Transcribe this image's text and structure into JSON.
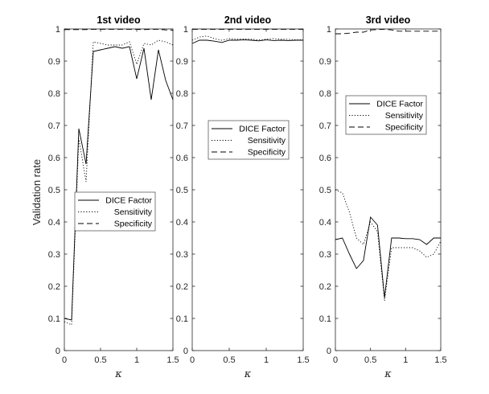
{
  "chart_data": {
    "type": "line",
    "ylabel": "Validation rate",
    "line_styles": {
      "DICE Factor": "solid",
      "Sensitivity": "dotted",
      "Specificity": "dashed"
    },
    "series_color": "#000000",
    "panels": [
      {
        "title": "1st video",
        "xlabel": "κ",
        "xlim": [
          0,
          1.5
        ],
        "ylim": [
          0,
          1
        ],
        "xticks": [
          "0",
          "0.5",
          "1",
          "1.5"
        ],
        "yticks": [
          "0",
          "0.1",
          "0.2",
          "0.3",
          "0.4",
          "0.5",
          "0.6",
          "0.7",
          "0.8",
          "0.9",
          "1"
        ],
        "legend_position": "center",
        "legend": [
          "DICE Factor",
          "Sensitivity",
          "Specificity"
        ],
        "series": [
          {
            "name": "DICE Factor",
            "x": [
              0,
              0.1,
              0.2,
              0.3,
              0.4,
              0.5,
              0.6,
              0.7,
              0.8,
              0.9,
              1.0,
              1.1,
              1.2,
              1.3,
              1.4,
              1.5
            ],
            "y": [
              0.1,
              0.095,
              0.69,
              0.58,
              0.93,
              0.935,
              0.94,
              0.945,
              0.94,
              0.945,
              0.845,
              0.94,
              0.78,
              0.935,
              0.84,
              0.78
            ]
          },
          {
            "name": "Sensitivity",
            "x": [
              0,
              0.1,
              0.2,
              0.3,
              0.4,
              0.5,
              0.6,
              0.7,
              0.8,
              0.9,
              1.0,
              1.1,
              1.2,
              1.3,
              1.4,
              1.5
            ],
            "y": [
              0.09,
              0.08,
              0.66,
              0.525,
              0.96,
              0.955,
              0.95,
              0.95,
              0.95,
              0.96,
              0.89,
              0.955,
              0.95,
              0.965,
              0.96,
              0.95
            ]
          },
          {
            "name": "Specificity",
            "x": [
              0,
              0.1,
              0.2,
              0.3,
              0.4,
              0.5,
              0.6,
              0.7,
              0.8,
              0.9,
              1.0,
              1.1,
              1.2,
              1.3,
              1.4,
              1.5
            ],
            "y": [
              0.998,
              0.998,
              0.998,
              0.998,
              0.999,
              0.999,
              0.999,
              0.999,
              0.999,
              0.999,
              0.999,
              0.998,
              0.999,
              0.999,
              0.997,
              0.996
            ]
          }
        ]
      },
      {
        "title": "2nd video",
        "xlabel": "κ",
        "xlim": [
          0,
          1.5
        ],
        "ylim": [
          0,
          1
        ],
        "xticks": [
          "0",
          "0.5",
          "1",
          "1.5"
        ],
        "yticks": [
          "0",
          "0.1",
          "0.2",
          "0.3",
          "0.4",
          "0.5",
          "0.6",
          "0.7",
          "0.8",
          "0.9",
          "1"
        ],
        "legend_position": "upper-middle",
        "legend": [
          "DICE Factor",
          "Sensitivity",
          "Specificity"
        ],
        "series": [
          {
            "name": "DICE Factor",
            "x": [
              0,
              0.1,
              0.2,
              0.3,
              0.4,
              0.5,
              0.6,
              0.7,
              0.8,
              0.9,
              1.0,
              1.1,
              1.2,
              1.3,
              1.4,
              1.5
            ],
            "y": [
              0.955,
              0.965,
              0.965,
              0.962,
              0.958,
              0.965,
              0.965,
              0.966,
              0.965,
              0.963,
              0.966,
              0.964,
              0.965,
              0.964,
              0.965,
              0.965
            ]
          },
          {
            "name": "Sensitivity",
            "x": [
              0,
              0.1,
              0.2,
              0.3,
              0.4,
              0.5,
              0.6,
              0.7,
              0.8,
              0.9,
              1.0,
              1.1,
              1.2,
              1.3,
              1.4,
              1.5
            ],
            "y": [
              0.965,
              0.975,
              0.978,
              0.97,
              0.965,
              0.97,
              0.968,
              0.969,
              0.968,
              0.966,
              0.968,
              0.97,
              0.968,
              0.968,
              0.966,
              0.966
            ]
          },
          {
            "name": "Specificity",
            "x": [
              0,
              0.1,
              0.2,
              0.3,
              0.4,
              0.5,
              0.6,
              0.7,
              0.8,
              0.9,
              1.0,
              1.1,
              1.2,
              1.3,
              1.4,
              1.5
            ],
            "y": [
              0.999,
              0.999,
              0.999,
              0.999,
              0.999,
              0.999,
              0.999,
              0.999,
              0.999,
              0.999,
              0.999,
              0.999,
              0.999,
              0.999,
              0.999,
              0.999
            ]
          }
        ]
      },
      {
        "title": "3rd video",
        "xlabel": "κ",
        "xlim": [
          0,
          1.5
        ],
        "ylim": [
          0,
          1
        ],
        "xticks": [
          "0",
          "0.5",
          "1",
          "1.5"
        ],
        "yticks": [
          "0",
          "0.1",
          "0.2",
          "0.3",
          "0.4",
          "0.5",
          "0.6",
          "0.7",
          "0.8",
          "0.9",
          "1"
        ],
        "legend_position": "upper-middle",
        "legend": [
          "DICE Factor",
          "Sensitivity",
          "Specificity"
        ],
        "series": [
          {
            "name": "DICE Factor",
            "x": [
              0,
              0.1,
              0.2,
              0.3,
              0.4,
              0.5,
              0.6,
              0.7,
              0.8,
              0.9,
              1.0,
              1.1,
              1.2,
              1.3,
              1.4,
              1.5
            ],
            "y": [
              0.345,
              0.35,
              0.3,
              0.255,
              0.28,
              0.415,
              0.39,
              0.165,
              0.35,
              0.35,
              0.348,
              0.348,
              0.345,
              0.33,
              0.35,
              0.35
            ]
          },
          {
            "name": "Sensitivity",
            "x": [
              0,
              0.1,
              0.2,
              0.3,
              0.4,
              0.5,
              0.6,
              0.7,
              0.8,
              0.9,
              1.0,
              1.1,
              1.2,
              1.3,
              1.4,
              1.5
            ],
            "y": [
              0.5,
              0.49,
              0.43,
              0.35,
              0.33,
              0.4,
              0.37,
              0.155,
              0.32,
              0.32,
              0.32,
              0.32,
              0.31,
              0.29,
              0.3,
              0.34
            ]
          },
          {
            "name": "Specificity",
            "x": [
              0,
              0.1,
              0.2,
              0.3,
              0.4,
              0.5,
              0.6,
              0.7,
              0.8,
              0.9,
              1.0,
              1.1,
              1.2,
              1.3,
              1.4,
              1.5
            ],
            "y": [
              0.985,
              0.985,
              0.987,
              0.99,
              0.99,
              0.997,
              0.998,
              0.999,
              0.997,
              0.993,
              0.993,
              0.993,
              0.993,
              0.993,
              0.993,
              0.993
            ]
          }
        ]
      }
    ]
  }
}
